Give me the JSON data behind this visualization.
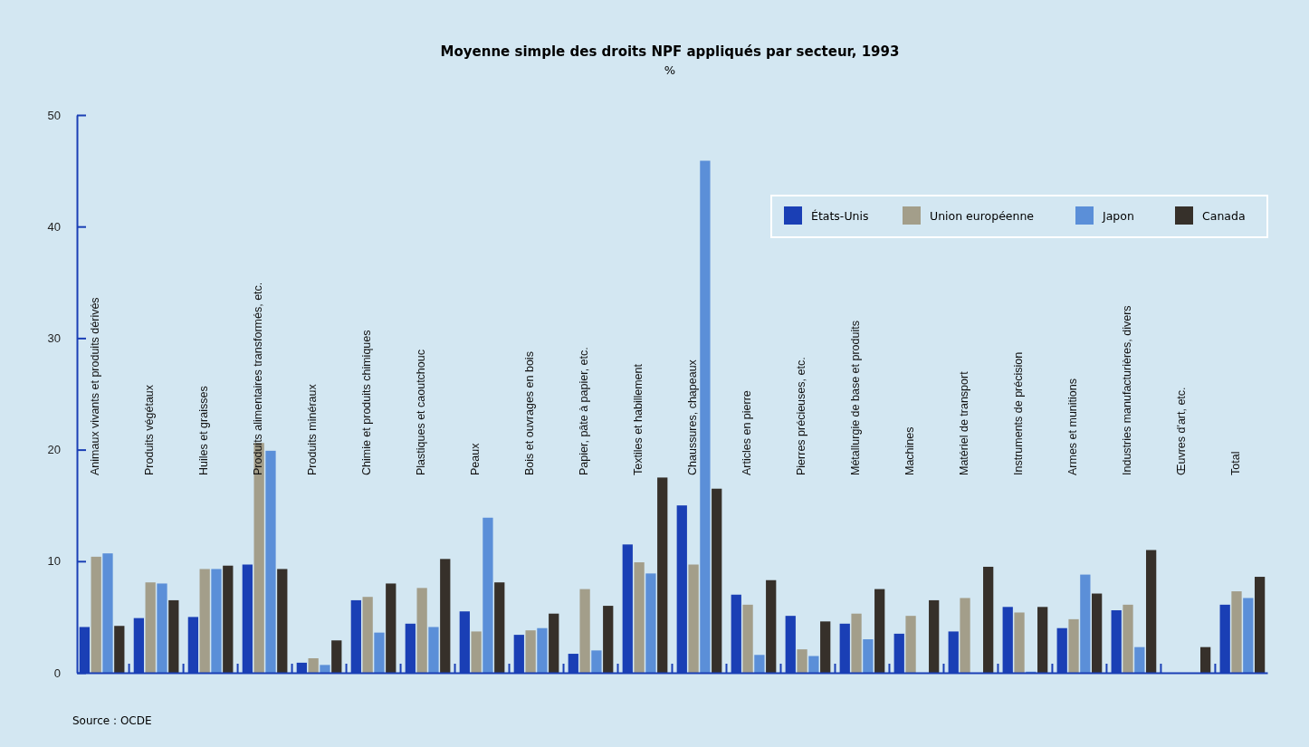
{
  "chart_data": {
    "type": "bar",
    "title": "Moyenne simple des droits NPF appliqués par secteur, 1993",
    "subtitle": "%",
    "categories": [
      "Animaux vivants et produits dérivés",
      "Produits végétaux",
      "Huiles et graisses",
      "Produits alimentaires transformés, etc.",
      "Produits minéraux",
      "Chimie et produits chimiques",
      "Plastiques et caoutchouc",
      "Peaux",
      "Bois et ouvrages en bois",
      "Papier, pâte à papier, etc.",
      "Textiles et habillement",
      "Chaussures, chapeaux",
      "Articles en pierre",
      "Pierres précieuses, etc.",
      "Métallurgie de base et produits",
      "Machines",
      "Matériel de transport",
      "Instruments de précision",
      "Armes et munitions",
      "Industries manufacturières, divers",
      "Œuvres d'art, etc.",
      "Total"
    ],
    "series": [
      {
        "name": "États-Unis",
        "color": "#1a3fb5",
        "values": [
          4.1,
          4.9,
          5.0,
          9.7,
          0.9,
          6.5,
          4.4,
          5.5,
          3.4,
          1.7,
          11.5,
          15.0,
          7.0,
          5.1,
          4.4,
          3.5,
          3.7,
          5.9,
          4.0,
          5.6,
          0,
          6.1
        ]
      },
      {
        "name": "Union européenne",
        "color": "#a39e8a",
        "values": [
          10.4,
          8.1,
          9.3,
          20.6,
          1.3,
          6.8,
          7.6,
          3.7,
          3.8,
          7.5,
          9.9,
          9.7,
          6.1,
          2.1,
          5.3,
          5.1,
          6.7,
          5.4,
          4.8,
          6.1,
          0,
          7.3
        ]
      },
      {
        "name": "Japon",
        "color": "#5b8fd8",
        "values": [
          10.7,
          8.0,
          9.3,
          19.9,
          0.7,
          3.6,
          4.1,
          13.9,
          4.0,
          2.0,
          8.9,
          45.9,
          1.6,
          1.5,
          3.0,
          0,
          0,
          0.1,
          8.8,
          2.3,
          0,
          6.7
        ]
      },
      {
        "name": "Canada",
        "color": "#36302a",
        "values": [
          4.2,
          6.5,
          9.6,
          9.3,
          2.9,
          8.0,
          10.2,
          8.1,
          5.3,
          6.0,
          17.5,
          16.5,
          8.3,
          4.6,
          7.5,
          6.5,
          9.5,
          5.9,
          7.1,
          11.0,
          2.3,
          8.6
        ]
      }
    ],
    "ylim": [
      0,
      50
    ],
    "yticks": [
      0,
      10,
      20,
      30,
      40,
      50
    ],
    "grid": false,
    "legend": "top right",
    "annotations": [
      "Source : OCDE"
    ]
  }
}
